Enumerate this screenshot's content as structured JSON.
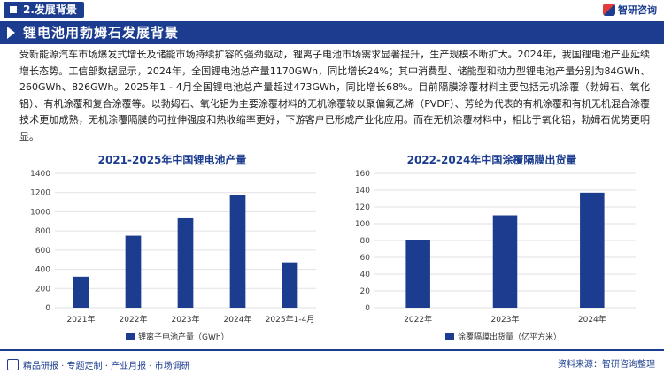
{
  "header": {
    "section": "2.发展背景",
    "brand": "智研咨询"
  },
  "title": "锂电池用勃姆石发展背景",
  "paragraph": "受新能源汽车市场爆发式增长及储能市场持续扩容的强劲驱动，锂离子电池市场需求显著提升，生产规模不断扩大。2024年，我国锂电池产业延续增长态势。工信部数据显示，2024年，全国锂电池总产量1170GWh，同比增长24%；其中消费型、储能型和动力型锂电池产量分别为84GWh、260GWh、826GWh。2025年1 - 4月全国锂电池总产量超过473GWh，同比增长68%。目前隔膜涂覆材料主要包括无机涂覆（勃姆石、氧化铝）、有机涂覆和复合涂覆等。以勃姆石、氧化铝为主要涂覆材料的无机涂覆较以聚偏氟乙烯（PVDF）、芳纶为代表的有机涂覆和有机无机混合涂覆技术更加成熟，无机涂覆隔膜的可拉伸强度和热收缩率更好，下游客户已形成产业化应用。而在无机涂覆材料中，相比于氧化铝，勃姆石优势更明显。",
  "chart_data": [
    {
      "type": "bar",
      "title": "2021-2025年中国锂电池产量",
      "categories": [
        "2021年",
        "2022年",
        "2023年",
        "2024年",
        "2025年1-4月"
      ],
      "series": [
        {
          "name": "锂离子电池产量（GWh）",
          "values": [
            324,
            750,
            940,
            1170,
            473
          ]
        }
      ],
      "ylim": [
        0,
        1400
      ],
      "yticks": [
        0,
        200,
        400,
        600,
        800,
        1000,
        1200,
        1400
      ],
      "grid": true,
      "legend": "bottom",
      "color": "#1c3d8f"
    },
    {
      "type": "bar",
      "title": "2022-2024年中国涂覆隔膜出货量",
      "categories": [
        "2022年",
        "2023年",
        "2024年"
      ],
      "series": [
        {
          "name": "涂覆隔膜出货量（亿平方米）",
          "values": [
            80,
            110,
            137
          ]
        }
      ],
      "ylim": [
        0,
        160
      ],
      "yticks": [
        0,
        20,
        40,
        60,
        80,
        100,
        120,
        140,
        160
      ],
      "grid": true,
      "legend": "bottom",
      "color": "#1c3d8f"
    }
  ],
  "footer": {
    "left": "精品研报 · 专题定制 · 产业月报 · 市场调研",
    "right": "资料来源：智研咨询整理"
  }
}
